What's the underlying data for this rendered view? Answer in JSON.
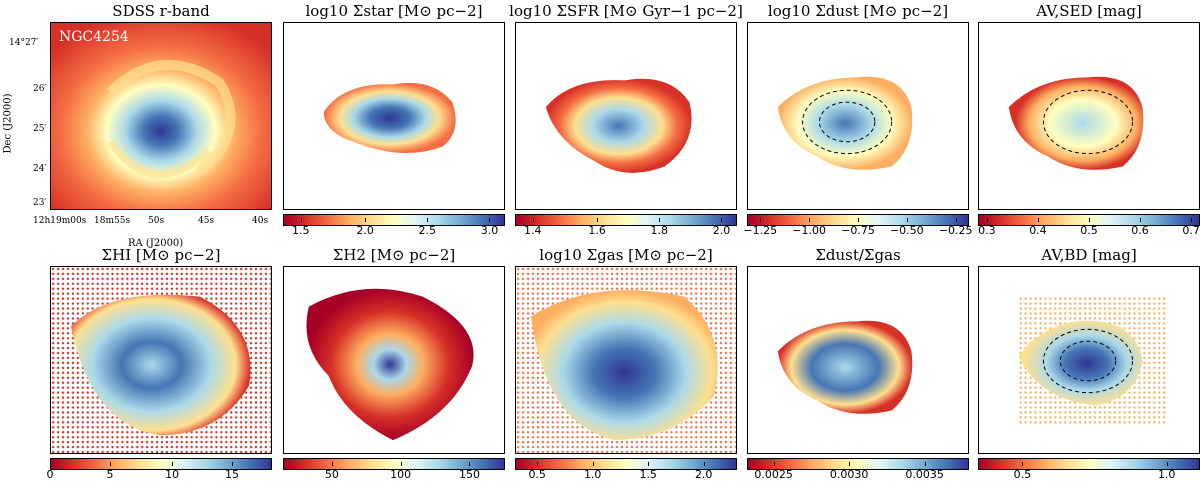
{
  "figure": {
    "galaxy_label": "NGC4254",
    "colormap": "RdYlBu",
    "colors": {
      "red_dark": "#a50026",
      "red": "#d73027",
      "orange": "#f46d43",
      "light_orange": "#fdae61",
      "yellow": "#fee090",
      "pale": "#ffffbf",
      "light_blue": "#abd9e9",
      "blue": "#4575b4",
      "dark_blue": "#313695"
    }
  },
  "axes": {
    "ylabel": "Dec (J2000)",
    "xlabel": "RA (J2000)",
    "dec_ticks": [
      "14°27′",
      "26′",
      "25′",
      "24′",
      "23′"
    ],
    "ra_ticks": [
      "12h19m00s",
      "18m55s",
      "50s",
      "45s",
      "40s"
    ]
  },
  "panels": [
    {
      "id": "sdss",
      "title_text": "SDSS r-band",
      "ticks": []
    },
    {
      "id": "sigma_star",
      "title_text": "log10 Σstar [M⊙ pc−2]",
      "ticks": [
        "1.5",
        "2.0",
        "2.5",
        "3.0"
      ]
    },
    {
      "id": "sigma_sfr",
      "title_text": "log10 ΣSFR [M⊙ Gyr−1 pc−2]",
      "ticks": [
        "1.4",
        "1.6",
        "1.8",
        "2.0"
      ]
    },
    {
      "id": "sigma_dust",
      "title_text": "log10 Σdust [M⊙ pc−2]",
      "ticks": [
        "−1.25",
        "−1.00",
        "−0.75",
        "−0.50",
        "−0.25"
      ]
    },
    {
      "id": "av_sed",
      "title_text": "AV,SED [mag]",
      "ticks": [
        "0.3",
        "0.4",
        "0.5",
        "0.6",
        "0.7"
      ]
    },
    {
      "id": "sigma_hi",
      "title_text": "ΣHI [M⊙ pc−2]",
      "ticks": [
        "0",
        "5",
        "10",
        "15"
      ]
    },
    {
      "id": "sigma_h2",
      "title_text": "ΣH2 [M⊙ pc−2]",
      "ticks": [
        "50",
        "100",
        "150"
      ]
    },
    {
      "id": "sigma_gas",
      "title_text": "log10 Σgas [M⊙ pc−2]",
      "ticks": [
        "0.5",
        "1.0",
        "1.5",
        "2.0"
      ]
    },
    {
      "id": "dust_gas",
      "title_text": "Σdust/Σgas",
      "ticks": [
        "0.0025",
        "0.0030",
        "0.0035"
      ]
    },
    {
      "id": "av_bd",
      "title_text": "AV,BD [mag]",
      "ticks": [
        "0.5",
        "1.0"
      ]
    }
  ]
}
